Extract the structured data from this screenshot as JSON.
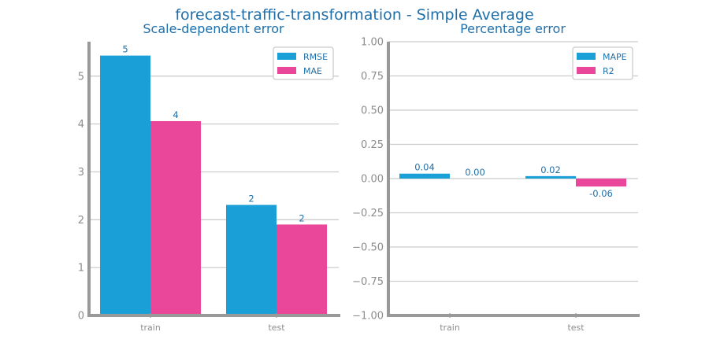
{
  "title": "forecast-traffic-transformation - Simple Average",
  "colors": {
    "series1": "#1a9fd6",
    "series2": "#ea479b",
    "text": "#1f6fab",
    "axis": "#999999",
    "grid": "#cccccc"
  },
  "chart_data": [
    {
      "type": "bar",
      "title": "Scale-dependent error",
      "xlabel": "",
      "ylabel": "",
      "categories": [
        "train",
        "test"
      ],
      "series": [
        {
          "name": "RMSE",
          "values": [
            5.43,
            2.31
          ],
          "labels": [
            "5",
            "2"
          ]
        },
        {
          "name": "MAE",
          "values": [
            4.06,
            1.9
          ],
          "labels": [
            "4",
            "2"
          ]
        }
      ],
      "ylim": [
        0,
        5.72
      ],
      "yticks": [
        0,
        1,
        2,
        3,
        4,
        5
      ],
      "ytick_labels": [
        "0",
        "1",
        "2",
        "3",
        "4",
        "5"
      ],
      "grid": true,
      "legend": "top-right"
    },
    {
      "type": "bar",
      "title": "Percentage error",
      "xlabel": "",
      "ylabel": "",
      "categories": [
        "train",
        "test"
      ],
      "series": [
        {
          "name": "MAPE",
          "values": [
            0.036,
            0.018
          ],
          "labels": [
            "0.04",
            "0.02"
          ]
        },
        {
          "name": "R2",
          "values": [
            0.0,
            -0.058
          ],
          "labels": [
            "0.00",
            "-0.06"
          ]
        }
      ],
      "ylim": [
        -1.0,
        1.0
      ],
      "yticks": [
        -1.0,
        -0.75,
        -0.5,
        -0.25,
        0.0,
        0.25,
        0.5,
        0.75,
        1.0
      ],
      "ytick_labels": [
        "−1.00",
        "−0.75",
        "−0.50",
        "−0.25",
        "0.00",
        "0.25",
        "0.50",
        "0.75",
        "1.00"
      ],
      "grid": true,
      "legend": "top-right"
    }
  ]
}
